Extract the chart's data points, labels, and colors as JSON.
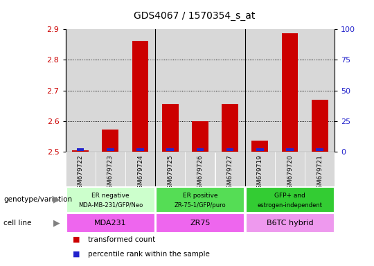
{
  "title": "GDS4067 / 1570354_s_at",
  "samples": [
    "GSM679722",
    "GSM679723",
    "GSM679724",
    "GSM679725",
    "GSM679726",
    "GSM679727",
    "GSM679719",
    "GSM679720",
    "GSM679721"
  ],
  "transformed_count": [
    2.505,
    2.572,
    2.862,
    2.655,
    2.6,
    2.655,
    2.535,
    2.888,
    2.67
  ],
  "percentile_rank": [
    2,
    5,
    7,
    5,
    4,
    5,
    3,
    10,
    6
  ],
  "bar_base": 2.5,
  "ylim": [
    2.5,
    2.9
  ],
  "yticks": [
    2.5,
    2.6,
    2.7,
    2.8,
    2.9
  ],
  "y2lim": [
    0,
    100
  ],
  "y2ticks": [
    0,
    25,
    50,
    75,
    100
  ],
  "bar_color": "#cc0000",
  "percentile_color": "#2222cc",
  "col_bg_color": "#d8d8d8",
  "genotype_groups": [
    {
      "label": "ER negative\nMDA-MB-231/GFP/Neo",
      "start": 0,
      "end": 3,
      "color": "#ccffcc"
    },
    {
      "label": "ER positive\nZR-75-1/GFP/puro",
      "start": 3,
      "end": 6,
      "color": "#55dd55"
    },
    {
      "label": "GFP+ and\nestrogen-independent",
      "start": 6,
      "end": 9,
      "color": "#33cc33"
    }
  ],
  "cell_line_groups": [
    {
      "label": "MDA231",
      "start": 0,
      "end": 3,
      "color": "#ee66ee"
    },
    {
      "label": "ZR75",
      "start": 3,
      "end": 6,
      "color": "#ee66ee"
    },
    {
      "label": "B6TC hybrid",
      "start": 6,
      "end": 9,
      "color": "#ee99ee"
    }
  ],
  "genotype_label": "genotype/variation",
  "cell_line_label": "cell line",
  "legend_red_label": "transformed count",
  "legend_blue_label": "percentile rank within the sample",
  "fig_width": 5.4,
  "fig_height": 3.84,
  "dpi": 100
}
